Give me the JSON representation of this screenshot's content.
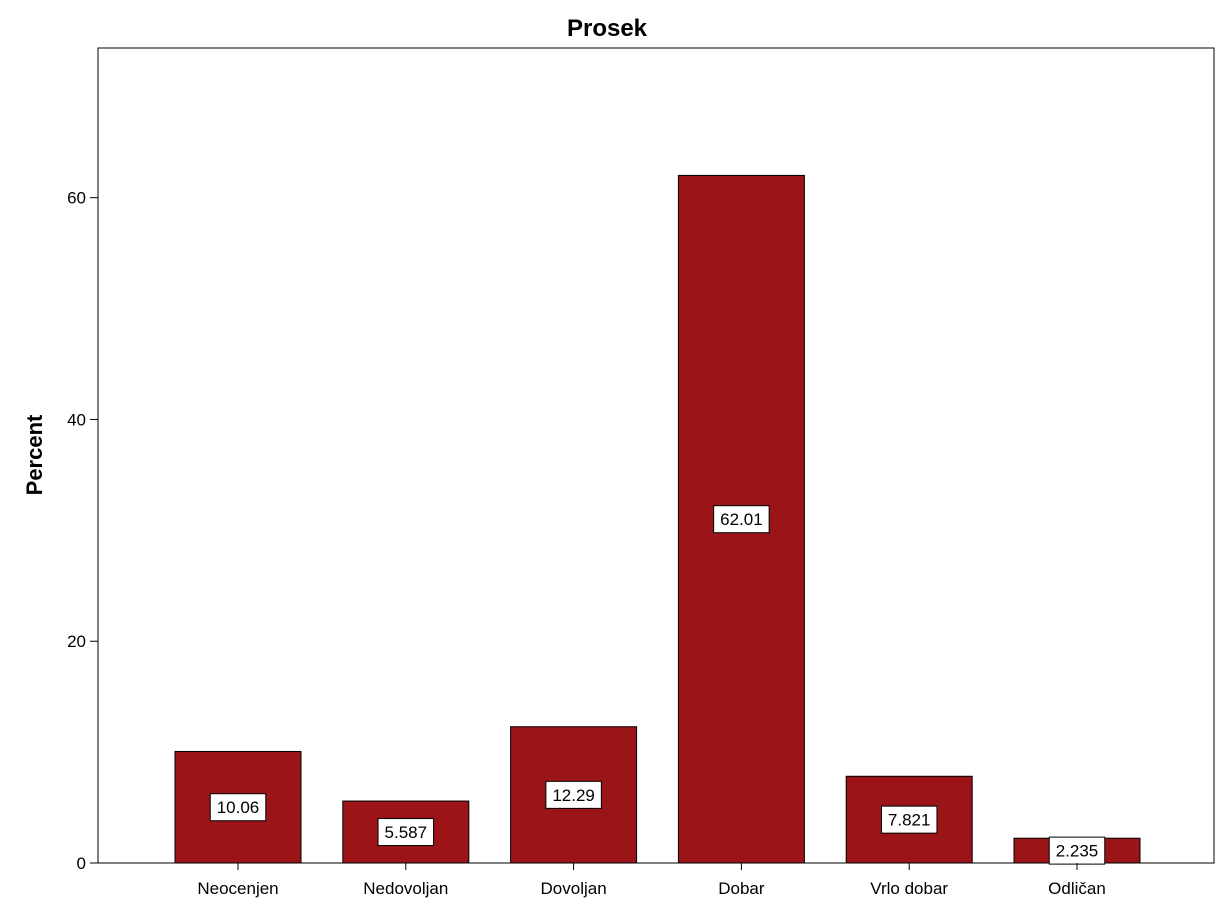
{
  "chart_data": {
    "type": "bar",
    "title": "Prosek",
    "xlabel": "",
    "ylabel": "Percent",
    "categories": [
      "Neocenjen",
      "Nedovoljan",
      "Dovoljan",
      "Dobar",
      "Vrlo dobar",
      "Odličan"
    ],
    "values": [
      10.06,
      5.587,
      12.29,
      62.01,
      7.821,
      2.235
    ],
    "data_labels": [
      "10.06",
      "5.587",
      "12.29",
      "62.01",
      "7.821",
      "2.235"
    ],
    "yticks": [
      0,
      20,
      40,
      60
    ],
    "ylim": [
      0,
      73.5
    ],
    "bar_color": "#9b1518",
    "grid": false,
    "legend": "none"
  }
}
